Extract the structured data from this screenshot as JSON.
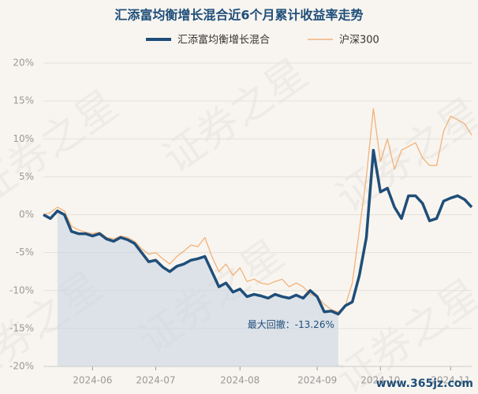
{
  "chart_data": {
    "type": "line",
    "title": "汇添富均衡增长混合近6个月累计收益率走势",
    "categories": [
      null,
      null,
      null,
      null,
      null,
      null,
      null,
      "2024-06",
      null,
      null,
      null,
      null,
      null,
      null,
      null,
      null,
      "2024-07",
      null,
      null,
      null,
      null,
      null,
      null,
      null,
      null,
      null,
      null,
      null,
      "2024-08",
      null,
      null,
      null,
      null,
      null,
      null,
      null,
      null,
      null,
      null,
      "2024-09",
      null,
      null,
      null,
      null,
      null,
      null,
      null,
      null,
      "2024-10",
      null,
      null,
      null,
      null,
      null,
      null,
      null,
      null,
      null,
      "2024-11",
      null,
      null,
      null
    ],
    "series": [
      {
        "name": "汇添富均衡增长混合",
        "color": "#1f4e79",
        "values": [
          0,
          -0.5,
          0.5,
          0,
          -2.2,
          -2.5,
          -2.5,
          -2.8,
          -2.5,
          -3.2,
          -3.5,
          -3.0,
          -3.3,
          -3.8,
          -5.0,
          -6.2,
          -6.0,
          -6.9,
          -7.5,
          -6.8,
          -6.5,
          -6.0,
          -5.8,
          -5.5,
          -7.5,
          -9.5,
          -9.0,
          -10.2,
          -9.8,
          -10.8,
          -10.5,
          -10.7,
          -11.0,
          -10.5,
          -10.8,
          -11.0,
          -10.6,
          -11.0,
          -10.0,
          -10.8,
          -12.8,
          -12.7,
          -13.1,
          -12.0,
          -11.5,
          -8.0,
          -3.0,
          8.5,
          3.0,
          3.5,
          1.0,
          -0.5,
          2.5,
          2.5,
          1.5,
          -0.8,
          -0.5,
          1.8,
          2.2,
          2.5,
          2.0,
          1.0
        ]
      },
      {
        "name": "沪深300",
        "color": "#f2b27a",
        "values": [
          0,
          0.3,
          1.0,
          0.5,
          -1.5,
          -2.0,
          -2.3,
          -2.5,
          -2.3,
          -3.0,
          -3.2,
          -2.8,
          -3.0,
          -3.5,
          -4.5,
          -5.2,
          -5.0,
          -5.8,
          -6.5,
          -5.5,
          -4.8,
          -4.0,
          -4.2,
          -3.0,
          -5.5,
          -7.5,
          -6.5,
          -8.0,
          -7.0,
          -8.8,
          -8.5,
          -9.0,
          -9.2,
          -8.8,
          -8.5,
          -9.5,
          -9.0,
          -9.5,
          -10.5,
          -10.8,
          -11.8,
          -12.5,
          -12.8,
          -12.0,
          -9.0,
          -2.0,
          5.0,
          14.0,
          7.0,
          10.0,
          6.0,
          8.5,
          9.0,
          9.5,
          7.5,
          6.5,
          6.5,
          11.0,
          13.0,
          12.5,
          12.0,
          10.5
        ]
      }
    ],
    "ylim": [
      -20,
      20
    ],
    "yticks": [
      {
        "value": -20,
        "label": "-20%"
      },
      {
        "value": -15,
        "label": "-15%"
      },
      {
        "value": -10,
        "label": "-10%"
      },
      {
        "value": -5,
        "label": "-5%"
      },
      {
        "value": 0,
        "label": "0%"
      },
      {
        "value": 5,
        "label": "5%"
      },
      {
        "value": 10,
        "label": "10%"
      },
      {
        "value": 15,
        "label": "15%"
      },
      {
        "value": 20,
        "label": "20%"
      }
    ],
    "grid": true,
    "annotation": "最大回撤：-13.26%",
    "watermark": "证券之星",
    "footer": "www.365jz.com"
  }
}
